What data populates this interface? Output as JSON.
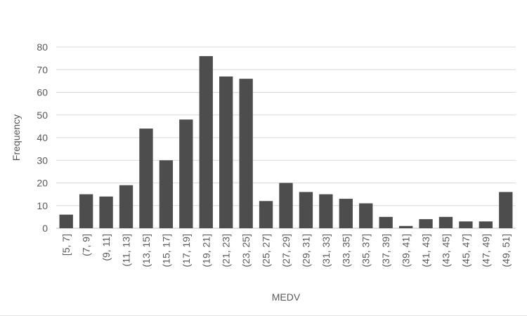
{
  "chart_data": {
    "type": "bar",
    "title": "",
    "xlabel": "MEDV",
    "ylabel": "Frequency",
    "ylim": [
      0,
      80
    ],
    "yticks": [
      0,
      10,
      20,
      30,
      40,
      50,
      60,
      70,
      80
    ],
    "grid": true,
    "legend": "none",
    "bar_color": "#4d4d4d",
    "categories": [
      "[5, 7]",
      "(7, 9]",
      "(9, 11]",
      "(11, 13]",
      "(13, 15]",
      "(15, 17]",
      "(17, 19]",
      "(19, 21]",
      "(21, 23]",
      "(23, 25]",
      "(25, 27]",
      "(27, 29]",
      "(29, 31]",
      "(31, 33]",
      "(33, 35]",
      "(35, 37]",
      "(37, 39]",
      "(39, 41]",
      "(41, 43]",
      "(43, 45]",
      "(45, 47]",
      "(47, 49]",
      "(49, 51]"
    ],
    "values": [
      6,
      15,
      14,
      19,
      44,
      30,
      48,
      76,
      67,
      66,
      12,
      20,
      16,
      15,
      13,
      11,
      5,
      1,
      4,
      5,
      3,
      3,
      16
    ]
  }
}
